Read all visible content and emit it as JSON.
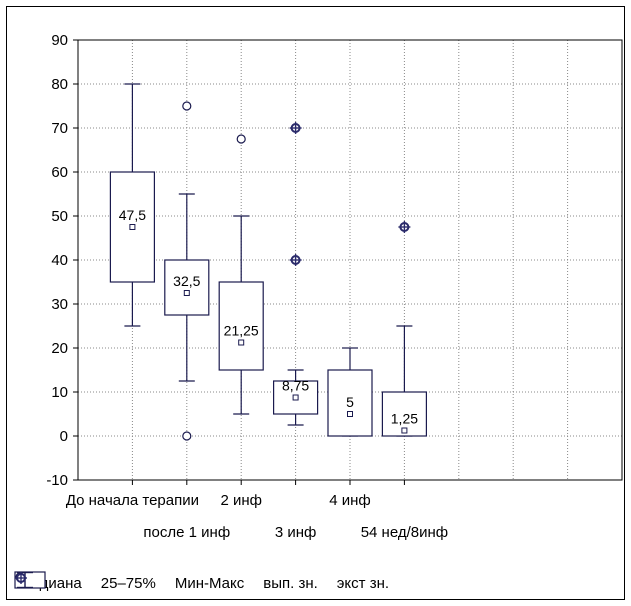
{
  "chart_data": {
    "type": "boxplot",
    "ylim": [
      -10,
      90
    ],
    "yticks": [
      -10,
      0,
      10,
      20,
      30,
      40,
      50,
      60,
      70,
      80,
      90
    ],
    "grid": true,
    "legend_position": "bottom",
    "categories": [
      "До начала терапии",
      "после 1 инф",
      "2 инф",
      "3 инф",
      "4 инф",
      "54 нед/8инф"
    ],
    "series": [
      {
        "label": "До начала терапии",
        "min": 25,
        "q1": 35,
        "median": 47.5,
        "q3": 60,
        "max": 80,
        "median_label": "47,5",
        "outliers": [],
        "extremes": []
      },
      {
        "label": "после 1 инф",
        "min": 12.5,
        "q1": 27.5,
        "median": 32.5,
        "q3": 40,
        "max": 55,
        "median_label": "32,5",
        "outliers": [
          75,
          0
        ],
        "extremes": []
      },
      {
        "label": "2 инф",
        "min": 5,
        "q1": 15,
        "median": 21.25,
        "q3": 35,
        "max": 50,
        "median_label": "21,25",
        "outliers": [
          67.5
        ],
        "extremes": []
      },
      {
        "label": "3 инф",
        "min": 2.5,
        "q1": 5,
        "median": 8.75,
        "q3": 12.5,
        "max": 15,
        "median_label": "8,75",
        "outliers": [],
        "extremes": [
          70,
          40
        ]
      },
      {
        "label": "4 инф",
        "min": 0,
        "q1": 0,
        "median": 5,
        "q3": 15,
        "max": 20,
        "median_label": "5",
        "outliers": [],
        "extremes": []
      },
      {
        "label": "54 нед/8инф",
        "min": 0,
        "q1": 0,
        "median": 1.25,
        "q3": 10,
        "max": 25,
        "median_label": "1,25",
        "outliers": [],
        "extremes": [
          47.5
        ]
      }
    ],
    "legend": [
      {
        "icon": "median-square",
        "label": "Медиана"
      },
      {
        "icon": "box-rectangle",
        "label": "25–75%"
      },
      {
        "icon": "whisker",
        "label": "Мин-Макс"
      },
      {
        "icon": "outlier-circle",
        "label": "вып. зн."
      },
      {
        "icon": "extreme-diamond",
        "label": "экст зн."
      }
    ],
    "colors": {
      "marks": "#1a1a4e",
      "extreme": "#2a2a6a",
      "grid": "#888888"
    }
  }
}
